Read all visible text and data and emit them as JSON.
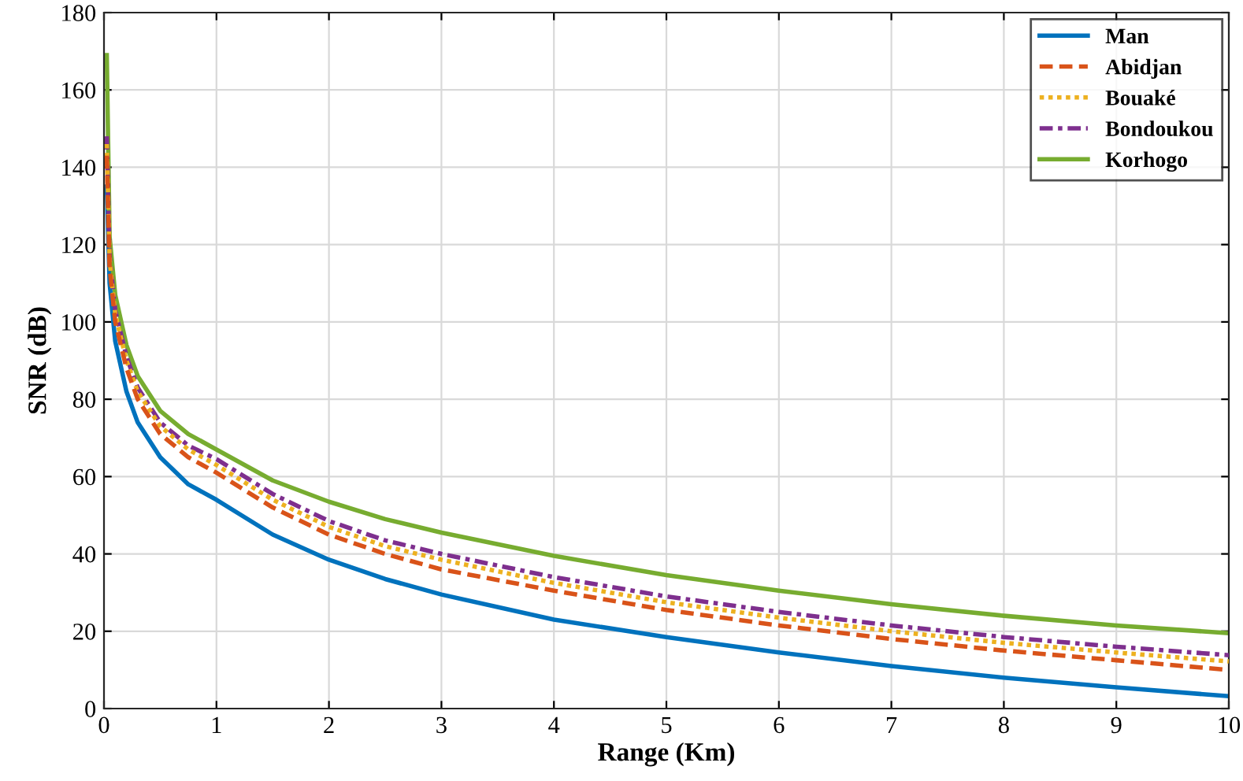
{
  "chart_data": {
    "type": "line",
    "xlabel": "Range (Km)",
    "ylabel": "SNR (dB)",
    "xlim": [
      0,
      10
    ],
    "ylim": [
      0,
      180
    ],
    "xticks": [
      0,
      1,
      2,
      3,
      4,
      5,
      6,
      7,
      8,
      9,
      10
    ],
    "yticks": [
      0,
      20,
      40,
      60,
      80,
      100,
      120,
      140,
      160,
      180
    ],
    "grid": true,
    "legend": "top right",
    "x": [
      0.025,
      0.05,
      0.1,
      0.2,
      0.3,
      0.5,
      0.75,
      1,
      1.5,
      2,
      2.5,
      3,
      4,
      5,
      6,
      7,
      8,
      9,
      10
    ],
    "series": [
      {
        "name": "Man",
        "color": "#0072bd",
        "line_style": "solid",
        "values": [
          135,
          110,
          95,
          82,
          74,
          65,
          58,
          54,
          45,
          38.5,
          33.5,
          29.5,
          23,
          18.5,
          14.5,
          11,
          8,
          5.5,
          3.2
        ]
      },
      {
        "name": "Abidjan",
        "color": "#d95319",
        "line_style": "dashed",
        "values": [
          143,
          114,
          100,
          88,
          80,
          71,
          65,
          61,
          52,
          45,
          40,
          36,
          30.5,
          25.5,
          21.5,
          18,
          15,
          12.5,
          10
        ]
      },
      {
        "name": "Bouaké",
        "color": "#edb120",
        "line_style": "dotted",
        "values": [
          146,
          116,
          102,
          90,
          82,
          73,
          67,
          63,
          54,
          47,
          42,
          38.5,
          32.5,
          27.5,
          23.5,
          20,
          17,
          14.5,
          12.2
        ]
      },
      {
        "name": "Bondoukou",
        "color": "#7e2f8e",
        "line_style": "dashdot",
        "values": [
          148,
          117,
          103,
          91,
          83,
          74,
          68,
          64.5,
          55.5,
          48.5,
          43.5,
          40,
          34,
          29,
          25,
          21.5,
          18.5,
          16,
          13.8
        ]
      },
      {
        "name": "Korhogo",
        "color": "#77ac30",
        "line_style": "solid",
        "values": [
          169,
          122,
          107,
          94,
          86,
          77,
          71,
          67,
          59,
          53.5,
          49,
          45.5,
          39.5,
          34.5,
          30.5,
          27,
          24,
          21.5,
          19.5
        ]
      }
    ]
  }
}
